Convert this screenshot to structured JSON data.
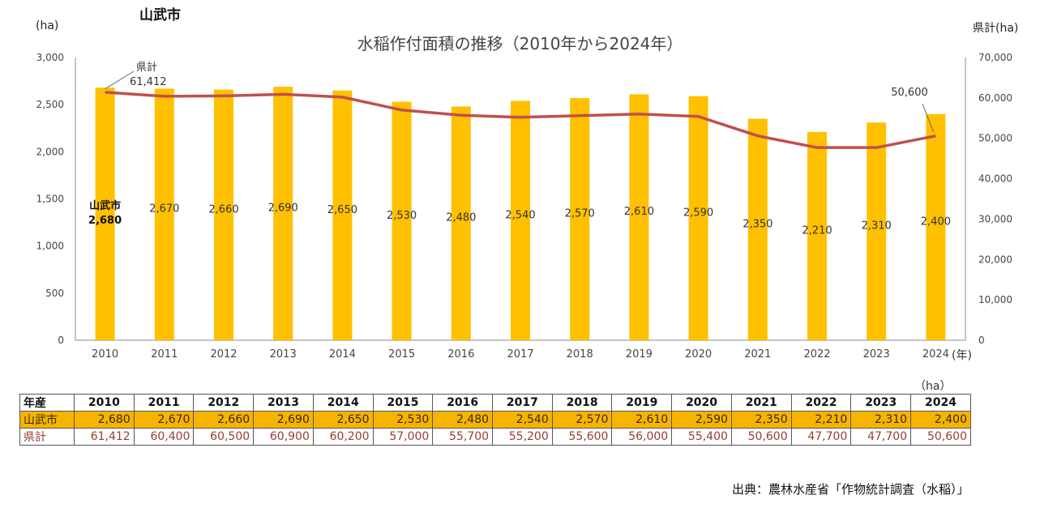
{
  "page": {
    "city_label": "山武市",
    "source": "出典：農林水産省「作物統計調査（水稲）」"
  },
  "colors": {
    "bar": "#FFC000",
    "line": "#C0504D",
    "pref_text": "#9B3B2E",
    "axis": "#888888"
  },
  "chart_data": {
    "type": "bar",
    "title": "水稲作付面積の推移（2010年から2024年）",
    "xlabel": "(年)",
    "ylabel": "(ha)",
    "y2label": "県計(ha)",
    "ylim": [
      0,
      3000
    ],
    "y2lim": [
      0,
      70000
    ],
    "yticks": [
      0,
      500,
      1000,
      1500,
      2000,
      2500,
      3000
    ],
    "yticks_labels": [
      "0",
      "500",
      "1,000",
      "1,500",
      "2,000",
      "2,500",
      "3,000"
    ],
    "y2ticks": [
      0,
      10000,
      20000,
      30000,
      40000,
      50000,
      60000,
      70000
    ],
    "y2ticks_labels": [
      "0",
      "10,000",
      "20,000",
      "30,000",
      "40,000",
      "50,000",
      "60,000",
      "70,000"
    ],
    "categories": [
      "2010",
      "2011",
      "2012",
      "2013",
      "2014",
      "2015",
      "2016",
      "2017",
      "2018",
      "2019",
      "2020",
      "2021",
      "2022",
      "2023",
      "2024"
    ],
    "grid": false,
    "series": [
      {
        "name": "山武市",
        "type": "bar",
        "axis": "left",
        "values": [
          2680,
          2670,
          2660,
          2690,
          2650,
          2530,
          2480,
          2540,
          2570,
          2610,
          2590,
          2350,
          2210,
          2310,
          2400
        ],
        "labels": [
          "2,680",
          "2,670",
          "2,660",
          "2,690",
          "2,650",
          "2,530",
          "2,480",
          "2,540",
          "2,570",
          "2,610",
          "2,590",
          "2,350",
          "2,210",
          "2,310",
          "2,400"
        ]
      },
      {
        "name": "県計",
        "type": "line",
        "axis": "right",
        "values": [
          61412,
          60400,
          60500,
          60900,
          60200,
          57000,
          55700,
          55200,
          55600,
          56000,
          55400,
          50600,
          47700,
          47700,
          50600
        ],
        "labels": [
          "61,412",
          "60,400",
          "60,500",
          "60,900",
          "60,200",
          "57,000",
          "55,700",
          "55,200",
          "55,600",
          "56,000",
          "55,400",
          "50,600",
          "47,700",
          "47,700",
          "50,600"
        ]
      }
    ],
    "annotations": {
      "first_bar_series": "山武市",
      "first_line_series": "県計",
      "first_line_value": "61,412",
      "last_line_value": "50,600"
    }
  },
  "table": {
    "unit": "（ha）",
    "header_label": "年産",
    "years": [
      "2010",
      "2011",
      "2012",
      "2013",
      "2014",
      "2015",
      "2016",
      "2017",
      "2018",
      "2019",
      "2020",
      "2021",
      "2022",
      "2023",
      "2024"
    ],
    "rows": [
      {
        "label": "山武市",
        "values": [
          "2,680",
          "2,670",
          "2,660",
          "2,690",
          "2,650",
          "2,530",
          "2,480",
          "2,540",
          "2,570",
          "2,610",
          "2,590",
          "2,350",
          "2,210",
          "2,310",
          "2,400"
        ]
      },
      {
        "label": "県計",
        "values": [
          "61,412",
          "60,400",
          "60,500",
          "60,900",
          "60,200",
          "57,000",
          "55,700",
          "55,200",
          "55,600",
          "56,000",
          "55,400",
          "50,600",
          "47,700",
          "47,700",
          "50,600"
        ]
      }
    ]
  }
}
